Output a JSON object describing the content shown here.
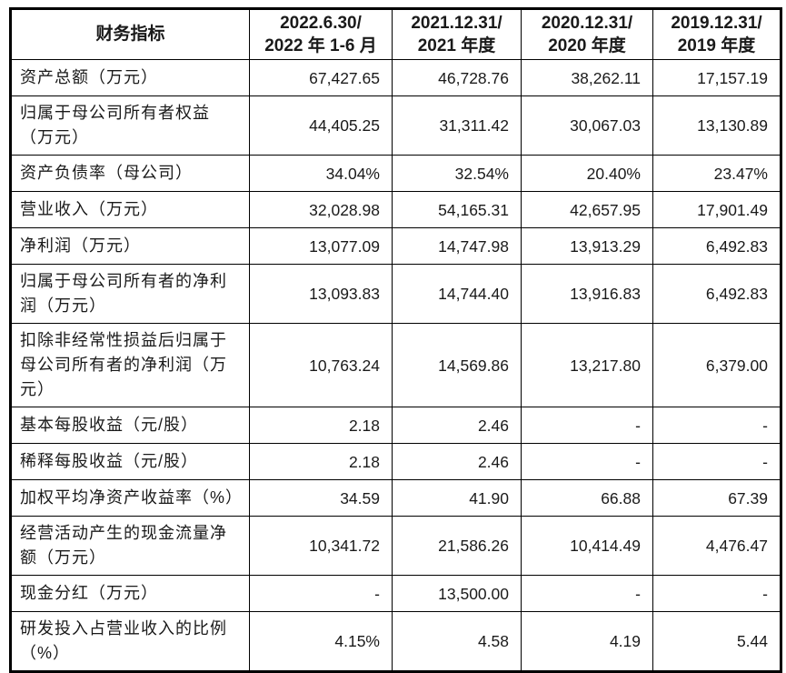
{
  "table": {
    "header": {
      "metric_label": "财务指标",
      "columns": [
        {
          "line1": "2022.6.30/",
          "line2": "2022 年 1-6 月"
        },
        {
          "line1": "2021.12.31/",
          "line2": "2021 年度"
        },
        {
          "line1": "2020.12.31/",
          "line2": "2020 年度"
        },
        {
          "line1": "2019.12.31/",
          "line2": "2019 年度"
        }
      ]
    },
    "rows": [
      {
        "label": "资产总额（万元）",
        "values": [
          "67,427.65",
          "46,728.76",
          "38,262.11",
          "17,157.19"
        ]
      },
      {
        "label": "归属于母公司所有者权益（万元）",
        "values": [
          "44,405.25",
          "31,311.42",
          "30,067.03",
          "13,130.89"
        ]
      },
      {
        "label": "资产负债率（母公司）",
        "values": [
          "34.04%",
          "32.54%",
          "20.40%",
          "23.47%"
        ]
      },
      {
        "label": "营业收入（万元）",
        "values": [
          "32,028.98",
          "54,165.31",
          "42,657.95",
          "17,901.49"
        ]
      },
      {
        "label": "净利润（万元）",
        "values": [
          "13,077.09",
          "14,747.98",
          "13,913.29",
          "6,492.83"
        ]
      },
      {
        "label": "归属于母公司所有者的净利润（万元）",
        "values": [
          "13,093.83",
          "14,744.40",
          "13,916.83",
          "6,492.83"
        ]
      },
      {
        "label": "扣除非经常性损益后归属于母公司所有者的净利润（万元）",
        "values": [
          "10,763.24",
          "14,569.86",
          "13,217.80",
          "6,379.00"
        ]
      },
      {
        "label": "基本每股收益（元/股）",
        "values": [
          "2.18",
          "2.46",
          "-",
          "-"
        ]
      },
      {
        "label": "稀释每股收益（元/股）",
        "values": [
          "2.18",
          "2.46",
          "-",
          "-"
        ]
      },
      {
        "label": "加权平均净资产收益率（%）",
        "values": [
          "34.59",
          "41.90",
          "66.88",
          "67.39"
        ]
      },
      {
        "label": "经营活动产生的现金流量净额（万元）",
        "values": [
          "10,341.72",
          "21,586.26",
          "10,414.49",
          "4,476.47"
        ]
      },
      {
        "label": "现金分红（万元）",
        "values": [
          "-",
          "13,500.00",
          "-",
          "-"
        ]
      },
      {
        "label": "研发投入占营业收入的比例（%）",
        "values": [
          "4.15%",
          "4.58",
          "4.19",
          "5.44"
        ]
      }
    ]
  }
}
